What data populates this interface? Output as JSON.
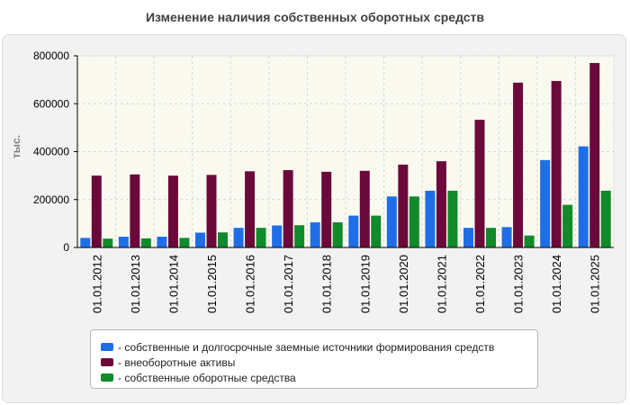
{
  "chart_data": {
    "type": "bar",
    "title": "Изменение наличия собственных оборотных средств",
    "ylabel": "тыс.",
    "xlabel": "",
    "ylim": [
      0,
      800000
    ],
    "yticks": [
      "0",
      "200000",
      "400000",
      "600000",
      "800000"
    ],
    "ytick_values": [
      0,
      200000,
      400000,
      600000,
      800000
    ],
    "grid": true,
    "legend_position": "bottom",
    "categories": [
      "01.01.2012",
      "01.01.2013",
      "01.01.2014",
      "01.01.2015",
      "01.01.2016",
      "01.01.2017",
      "01.01.2018",
      "01.01.2019",
      "01.01.2020",
      "01.01.2021",
      "01.01.2022",
      "01.01.2023",
      "01.01.2024",
      "01.01.2025"
    ],
    "series": [
      {
        "name": "- собственные и долгосрочные заемные источники формирования средств",
        "color": "#1f6ee8",
        "values": [
          40000,
          45000,
          45000,
          62000,
          82000,
          92000,
          105000,
          133000,
          213000,
          237000,
          82000,
          85000,
          365000,
          422000
        ]
      },
      {
        "name": "- внеоборотные активы",
        "color": "#6b0a3a",
        "values": [
          300000,
          305000,
          300000,
          303000,
          318000,
          323000,
          316000,
          320000,
          346000,
          360000,
          533000,
          688000,
          695000,
          770000
        ]
      },
      {
        "name": "- собственные оборотные средства",
        "color": "#108a2a",
        "values": [
          37000,
          38000,
          40000,
          63000,
          82000,
          93000,
          105000,
          133000,
          213000,
          237000,
          82000,
          50000,
          178000,
          237000
        ]
      }
    ]
  }
}
